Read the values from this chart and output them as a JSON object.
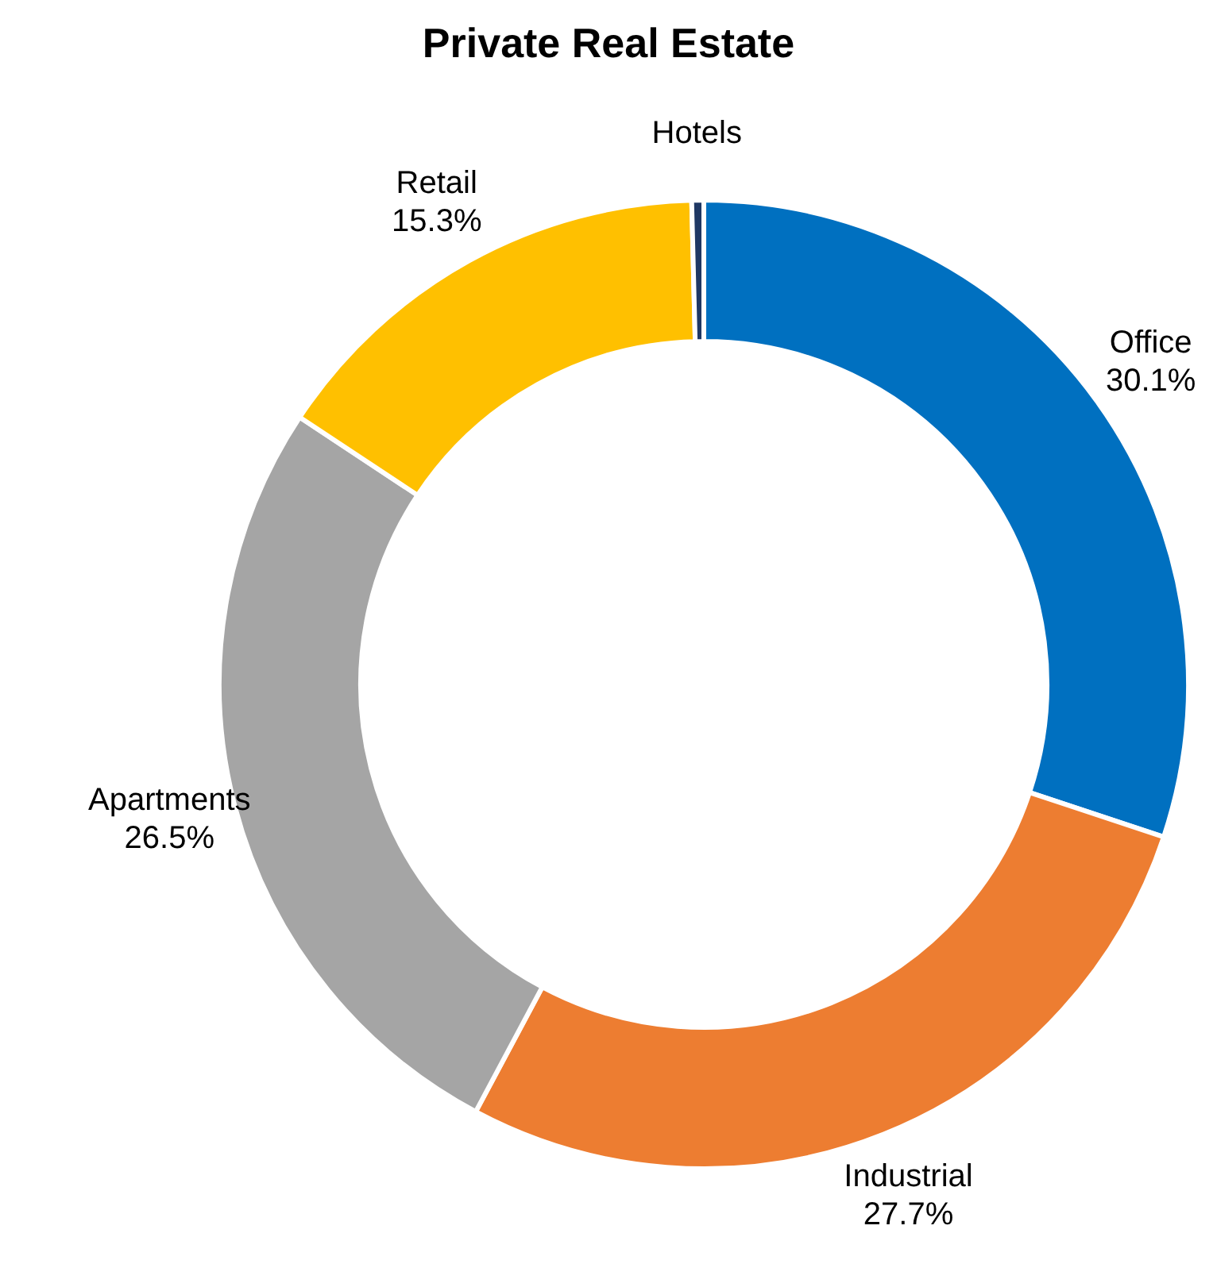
{
  "chart_data": {
    "type": "donut",
    "title": "Private Real Estate",
    "categories": [
      "Office",
      "Industrial",
      "Apartments",
      "Retail",
      "Hotels"
    ],
    "values": [
      30.1,
      27.7,
      26.5,
      15.3,
      0.4
    ],
    "value_labels": [
      "30.1%",
      "27.7%",
      "26.5%",
      "15.3%",
      null
    ],
    "colors": [
      "#0070c0",
      "#ed7d31",
      "#a5a5a5",
      "#ffc000",
      "#1f3864"
    ]
  }
}
